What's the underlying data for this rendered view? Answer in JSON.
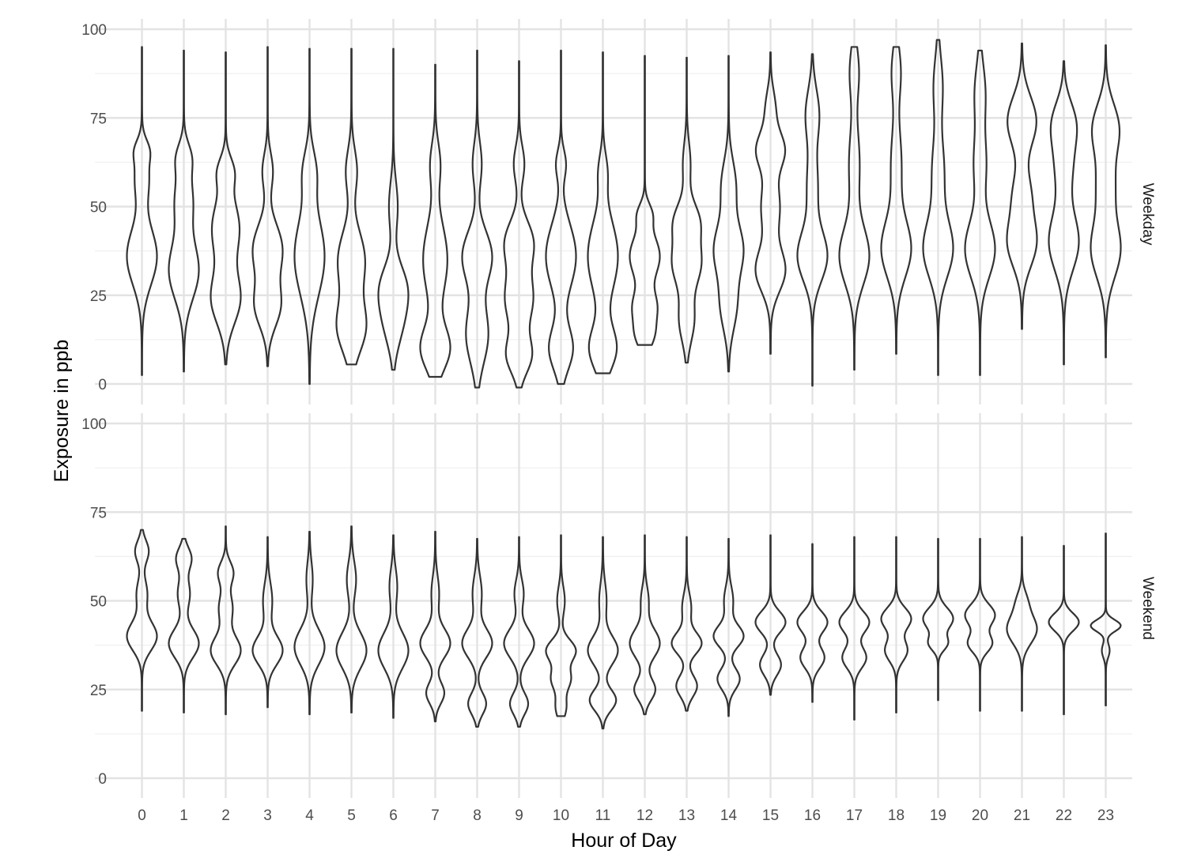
{
  "chart_data": {
    "type": "violin",
    "xlabel": "Hour of Day",
    "ylabel": "Exposure in ppb",
    "x_categories": [
      "0",
      "1",
      "2",
      "3",
      "4",
      "5",
      "6",
      "7",
      "8",
      "9",
      "10",
      "11",
      "12",
      "13",
      "14",
      "15",
      "16",
      "17",
      "18",
      "19",
      "20",
      "21",
      "22",
      "23"
    ],
    "y_ticks": [
      0,
      25,
      50,
      75,
      100
    ],
    "ylim": [
      -5,
      105
    ],
    "grid": true,
    "facets": [
      {
        "name": "Weekday",
        "violins": [
          {
            "hour": "0",
            "min": 2.5,
            "max": 95,
            "modes": [
              [
                36,
                1.0,
                8
              ],
              [
                58,
                0.45,
                6
              ],
              [
                66,
                0.35,
                3
              ]
            ]
          },
          {
            "hour": "1",
            "min": 3.5,
            "max": 94,
            "modes": [
              [
                32,
                0.95,
                8
              ],
              [
                52,
                0.55,
                7
              ],
              [
                64,
                0.4,
                4
              ]
            ]
          },
          {
            "hour": "2",
            "min": 5.5,
            "max": 93.5,
            "modes": [
              [
                24,
                0.9,
                7
              ],
              [
                44,
                0.85,
                8
              ],
              [
                60,
                0.45,
                4
              ]
            ]
          },
          {
            "hour": "3",
            "min": 5,
            "max": 95,
            "modes": [
              [
                22,
                0.85,
                6
              ],
              [
                38,
                1.0,
                7
              ],
              [
                60,
                0.35,
                5
              ]
            ]
          },
          {
            "hour": "4",
            "min": 0,
            "max": 94.5,
            "modes": [
              [
                36,
                1.0,
                11
              ],
              [
                60,
                0.4,
                6
              ]
            ]
          },
          {
            "hour": "5",
            "min": 5.5,
            "max": 94.5,
            "modes": [
              [
                16,
                0.9,
                7
              ],
              [
                35,
                0.85,
                8
              ],
              [
                60,
                0.35,
                6
              ]
            ]
          },
          {
            "hour": "6",
            "min": 4,
            "max": 94.5,
            "modes": [
              [
                18,
                0.85,
                7
              ],
              [
                28,
                1.0,
                6
              ],
              [
                50,
                0.4,
                7
              ]
            ]
          },
          {
            "hour": "7",
            "min": 2,
            "max": 90,
            "modes": [
              [
                10,
                0.9,
                6
              ],
              [
                35,
                0.75,
                10
              ],
              [
                62,
                0.3,
                6
              ]
            ]
          },
          {
            "hour": "8",
            "min": -1,
            "max": 94,
            "modes": [
              [
                14,
                0.75,
                8
              ],
              [
                36,
                1.0,
                7
              ],
              [
                62,
                0.3,
                6
              ]
            ]
          },
          {
            "hour": "9",
            "min": -1,
            "max": 91,
            "modes": [
              [
                8,
                0.7,
                5
              ],
              [
                24,
                0.8,
                7
              ],
              [
                40,
                0.8,
                6
              ],
              [
                62,
                0.3,
                5
              ]
            ]
          },
          {
            "hour": "10",
            "min": 0,
            "max": 94,
            "modes": [
              [
                10,
                0.75,
                6
              ],
              [
                36,
                0.95,
                9
              ],
              [
                62,
                0.3,
                4
              ]
            ]
          },
          {
            "hour": "11",
            "min": 3,
            "max": 93.5,
            "modes": [
              [
                10,
                0.85,
                6
              ],
              [
                36,
                0.95,
                10
              ],
              [
                60,
                0.25,
                5
              ]
            ]
          },
          {
            "hour": "12",
            "min": 11,
            "max": 92.5,
            "modes": [
              [
                14,
                0.6,
                4
              ],
              [
                22,
                0.7,
                4
              ],
              [
                36,
                1.0,
                6
              ],
              [
                48,
                0.4,
                3
              ]
            ]
          },
          {
            "hour": "13",
            "min": 6,
            "max": 92,
            "modes": [
              [
                18,
                0.5,
                6
              ],
              [
                34,
                0.95,
                6
              ],
              [
                46,
                0.8,
                5
              ],
              [
                62,
                0.25,
                6
              ]
            ]
          },
          {
            "hour": "14",
            "min": 3.5,
            "max": 92.5,
            "modes": [
              [
                22,
                0.55,
                7
              ],
              [
                38,
                1.0,
                7
              ],
              [
                56,
                0.5,
                7
              ]
            ]
          },
          {
            "hour": "15",
            "min": 8.5,
            "max": 93.5,
            "modes": [
              [
                32,
                0.8,
                6
              ],
              [
                50,
                0.5,
                7
              ],
              [
                66,
                0.75,
                5
              ],
              [
                78,
                0.25,
                5
              ]
            ]
          },
          {
            "hour": "16",
            "min": -0.5,
            "max": 93,
            "modes": [
              [
                36,
                1.0,
                7
              ],
              [
                56,
                0.35,
                8
              ],
              [
                76,
                0.45,
                7
              ]
            ]
          },
          {
            "hour": "17",
            "min": 4,
            "max": 95,
            "modes": [
              [
                36,
                1.0,
                8
              ],
              [
                62,
                0.35,
                10
              ],
              [
                88,
                0.3,
                7
              ]
            ]
          },
          {
            "hour": "18",
            "min": 8.5,
            "max": 95,
            "modes": [
              [
                38,
                1.0,
                8
              ],
              [
                62,
                0.35,
                10
              ],
              [
                88,
                0.3,
                7
              ]
            ]
          },
          {
            "hour": "19",
            "min": 2.5,
            "max": 97,
            "modes": [
              [
                38,
                1.0,
                8
              ],
              [
                60,
                0.4,
                9
              ],
              [
                84,
                0.3,
                8
              ]
            ]
          },
          {
            "hour": "20",
            "min": 2.5,
            "max": 94,
            "modes": [
              [
                38,
                1.0,
                8
              ],
              [
                62,
                0.4,
                8
              ],
              [
                82,
                0.35,
                8
              ]
            ]
          },
          {
            "hour": "21",
            "min": 15.5,
            "max": 96,
            "modes": [
              [
                40,
                0.85,
                7
              ],
              [
                54,
                0.45,
                6
              ],
              [
                74,
                0.85,
                7
              ]
            ]
          },
          {
            "hour": "22",
            "min": 5.5,
            "max": 91,
            "modes": [
              [
                40,
                0.9,
                8
              ],
              [
                62,
                0.5,
                8
              ],
              [
                74,
                0.6,
                6
              ]
            ]
          },
          {
            "hour": "23",
            "min": 7.5,
            "max": 95.5,
            "modes": [
              [
                38,
                0.95,
                8
              ],
              [
                56,
                0.5,
                7
              ],
              [
                72,
                0.85,
                7
              ]
            ]
          }
        ]
      },
      {
        "name": "Weekend",
        "violins": [
          {
            "hour": "0",
            "min": 19,
            "max": 70,
            "modes": [
              [
                40,
                1.0,
                4
              ],
              [
                52,
                0.35,
                4
              ],
              [
                64,
                0.45,
                3
              ]
            ]
          },
          {
            "hour": "1",
            "min": 18.5,
            "max": 67.5,
            "modes": [
              [
                38,
                1.0,
                4
              ],
              [
                52,
                0.4,
                4
              ],
              [
                62,
                0.5,
                3
              ]
            ]
          },
          {
            "hour": "2",
            "min": 18,
            "max": 71,
            "modes": [
              [
                36,
                1.0,
                4
              ],
              [
                48,
                0.45,
                4
              ],
              [
                58,
                0.5,
                3
              ]
            ]
          },
          {
            "hour": "3",
            "min": 20,
            "max": 68,
            "modes": [
              [
                36,
                1.0,
                4
              ],
              [
                50,
                0.3,
                5
              ]
            ]
          },
          {
            "hour": "4",
            "min": 18,
            "max": 69.5,
            "modes": [
              [
                37,
                1.0,
                5
              ],
              [
                56,
                0.2,
                5
              ]
            ]
          },
          {
            "hour": "5",
            "min": 18.5,
            "max": 71,
            "modes": [
              [
                36,
                1.0,
                5
              ],
              [
                56,
                0.3,
                5
              ]
            ]
          },
          {
            "hour": "6",
            "min": 17,
            "max": 68.5,
            "modes": [
              [
                36,
                1.0,
                5
              ],
              [
                54,
                0.25,
                5
              ]
            ]
          },
          {
            "hour": "7",
            "min": 16,
            "max": 69.5,
            "modes": [
              [
                24,
                0.6,
                3
              ],
              [
                38,
                1.0,
                4
              ],
              [
                52,
                0.25,
                5
              ]
            ]
          },
          {
            "hour": "8",
            "min": 14.5,
            "max": 67.5,
            "modes": [
              [
                21,
                0.6,
                3
              ],
              [
                38,
                1.0,
                4
              ],
              [
                52,
                0.3,
                5
              ]
            ]
          },
          {
            "hour": "9",
            "min": 14.5,
            "max": 68,
            "modes": [
              [
                21,
                0.6,
                3
              ],
              [
                38,
                1.0,
                4
              ],
              [
                52,
                0.3,
                4
              ]
            ]
          },
          {
            "hour": "10",
            "min": 17.5,
            "max": 68.5,
            "modes": [
              [
                20,
                0.35,
                3
              ],
              [
                28,
                0.65,
                3
              ],
              [
                36,
                1.0,
                3
              ],
              [
                50,
                0.25,
                4
              ]
            ]
          },
          {
            "hour": "11",
            "min": 14,
            "max": 68,
            "modes": [
              [
                22,
                0.75,
                3
              ],
              [
                36,
                0.85,
                4
              ],
              [
                50,
                0.2,
                5
              ]
            ]
          },
          {
            "hour": "12",
            "min": 18,
            "max": 68.5,
            "modes": [
              [
                25,
                0.7,
                3
              ],
              [
                38,
                1.0,
                4
              ],
              [
                50,
                0.25,
                4
              ]
            ]
          },
          {
            "hour": "13",
            "min": 19,
            "max": 68,
            "modes": [
              [
                26,
                0.7,
                3
              ],
              [
                38,
                1.0,
                3
              ],
              [
                48,
                0.3,
                4
              ]
            ]
          },
          {
            "hour": "14",
            "min": 17.5,
            "max": 67.5,
            "modes": [
              [
                28,
                0.75,
                3
              ],
              [
                40,
                1.0,
                3
              ],
              [
                50,
                0.3,
                4
              ]
            ]
          },
          {
            "hour": "15",
            "min": 23.5,
            "max": 68.5,
            "modes": [
              [
                32,
                0.7,
                3
              ],
              [
                44,
                1.0,
                3
              ]
            ]
          },
          {
            "hour": "16",
            "min": 21.5,
            "max": 66,
            "modes": [
              [
                34,
                0.8,
                3
              ],
              [
                44,
                1.0,
                3
              ]
            ]
          },
          {
            "hour": "17",
            "min": 16.5,
            "max": 68,
            "modes": [
              [
                34,
                0.8,
                3
              ],
              [
                44,
                1.0,
                3
              ]
            ]
          },
          {
            "hour": "18",
            "min": 18.5,
            "max": 68,
            "modes": [
              [
                36,
                0.75,
                3
              ],
              [
                45,
                1.0,
                3
              ]
            ]
          },
          {
            "hour": "19",
            "min": 22,
            "max": 67.5,
            "modes": [
              [
                38,
                0.6,
                2
              ],
              [
                45,
                1.0,
                3
              ]
            ]
          },
          {
            "hour": "20",
            "min": 19,
            "max": 67.5,
            "modes": [
              [
                38,
                0.8,
                2.5
              ],
              [
                46,
                1.0,
                3
              ]
            ]
          },
          {
            "hour": "21",
            "min": 19,
            "max": 68,
            "modes": [
              [
                42,
                1.0,
                4
              ],
              [
                50,
                0.3,
                3
              ]
            ]
          },
          {
            "hour": "22",
            "min": 18,
            "max": 65.5,
            "modes": [
              [
                44,
                1.0,
                2.5
              ]
            ]
          },
          {
            "hour": "23",
            "min": 20.5,
            "max": 69,
            "modes": [
              [
                43,
                1.0,
                1.6
              ],
              [
                36,
                0.25,
                2
              ]
            ]
          }
        ]
      }
    ]
  }
}
